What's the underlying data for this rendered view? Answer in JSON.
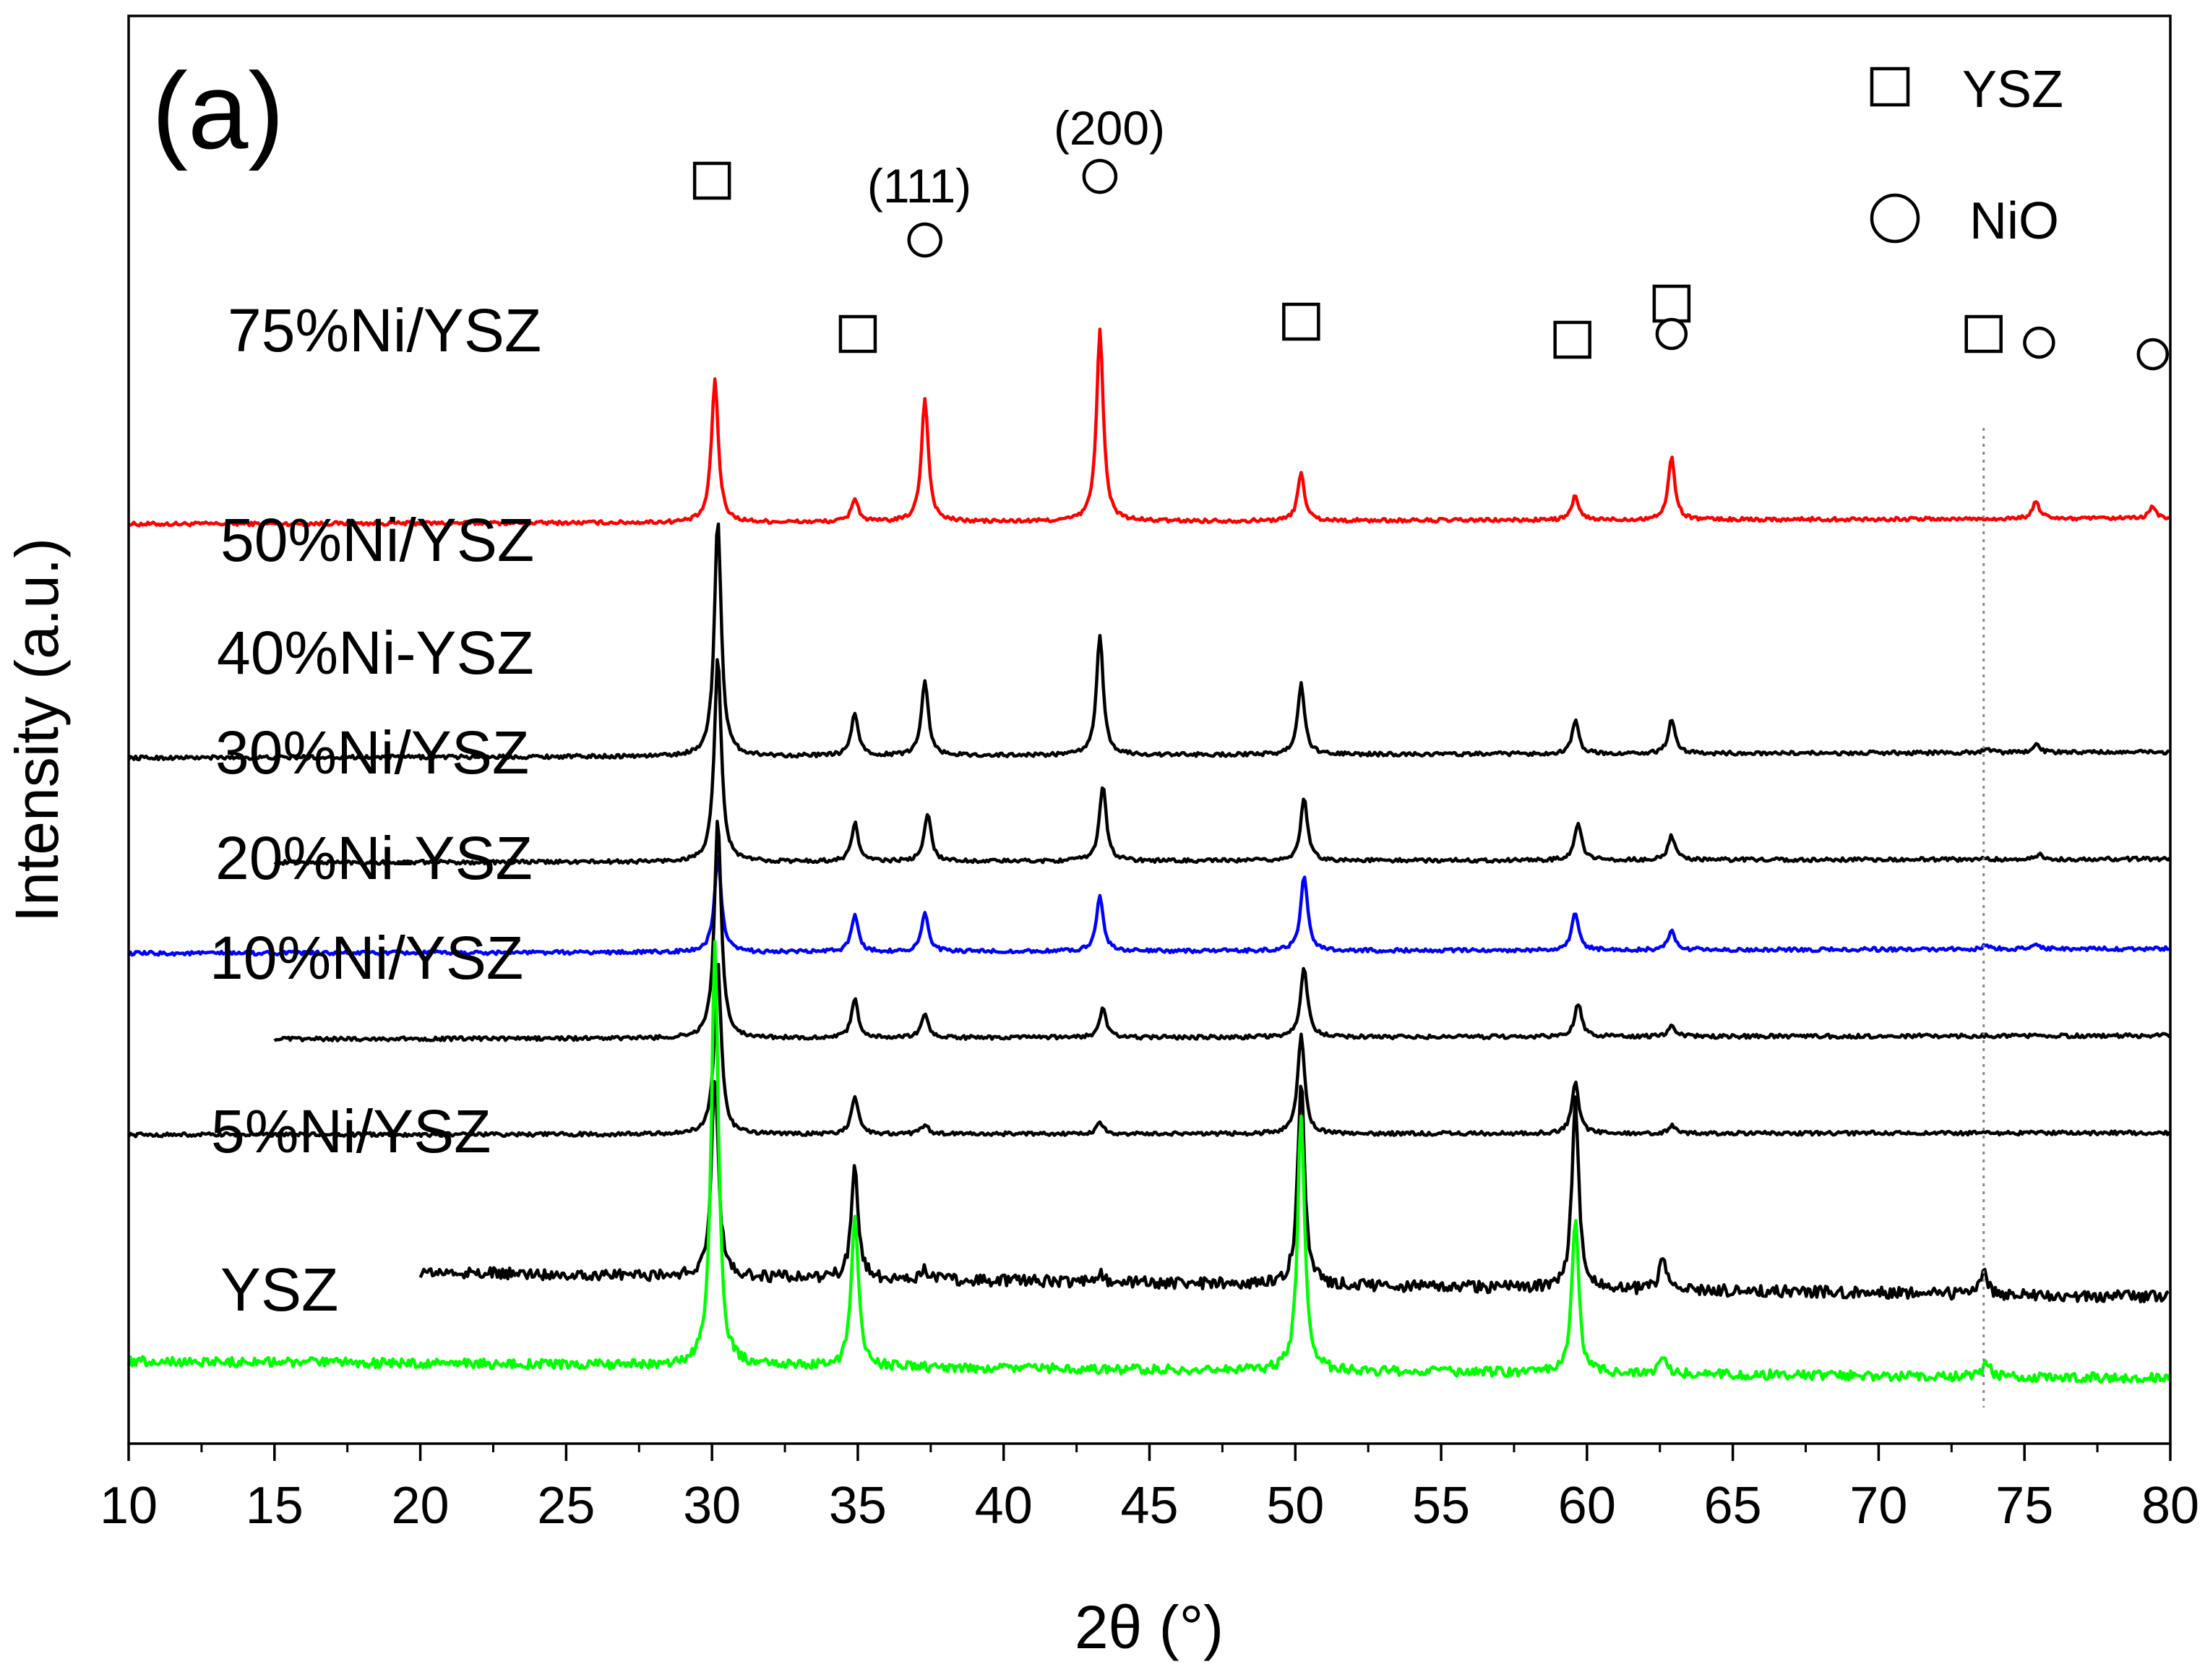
{
  "chart_data": {
    "type": "line",
    "panel_label": "(a)",
    "xlabel": "2θ (°)",
    "ylabel": "Intensity (a.u.)",
    "xlim": [
      10,
      80
    ],
    "xticks": [
      10,
      15,
      20,
      25,
      30,
      35,
      40,
      45,
      50,
      55,
      60,
      65,
      70,
      75,
      80
    ],
    "yaxis": "stacked offsets, arbitrary units, no numeric ticks",
    "legend": {
      "position": "top-right",
      "entries": [
        {
          "marker": "square",
          "label": "YSZ"
        },
        {
          "marker": "circle",
          "label": "NiO"
        }
      ]
    },
    "plane_labels": [
      {
        "text": "(111)",
        "x": 37.3
      },
      {
        "text": "(200)",
        "x": 43.3
      }
    ],
    "reference_line_x": 73.6,
    "peak_markers": [
      {
        "marker": "square",
        "x": 30.0
      },
      {
        "marker": "square",
        "x": 35.0
      },
      {
        "marker": "circle",
        "x": 37.3
      },
      {
        "marker": "circle",
        "x": 43.3
      },
      {
        "marker": "square",
        "x": 50.2
      },
      {
        "marker": "square",
        "x": 59.5
      },
      {
        "marker": "square",
        "x": 62.9
      },
      {
        "marker": "circle",
        "x": 62.9
      },
      {
        "marker": "square",
        "x": 73.6
      },
      {
        "marker": "circle",
        "x": 75.5
      },
      {
        "marker": "circle",
        "x": 79.4
      }
    ],
    "series": [
      {
        "name": "75%Ni/YSZ",
        "color": "#ff0000",
        "x_start": 10,
        "offset": 8.75,
        "tilt": 0.06,
        "noise": 0.02,
        "peaks": [
          [
            30.1,
            1.5
          ],
          [
            34.9,
            0.25
          ],
          [
            37.3,
            1.3
          ],
          [
            43.3,
            2.0
          ],
          [
            50.2,
            0.5
          ],
          [
            59.6,
            0.25
          ],
          [
            62.9,
            0.65
          ],
          [
            75.4,
            0.18
          ],
          [
            79.4,
            0.12
          ]
        ]
      },
      {
        "name": "50%Ni/YSZ",
        "color": "#000000",
        "x_start": 10,
        "offset": 6.3,
        "tilt": 0.06,
        "noise": 0.02,
        "peaks": [
          [
            30.2,
            2.5
          ],
          [
            34.9,
            0.45
          ],
          [
            37.3,
            0.8
          ],
          [
            43.3,
            1.25
          ],
          [
            50.2,
            0.75
          ],
          [
            59.6,
            0.35
          ],
          [
            62.9,
            0.35
          ],
          [
            73.7,
            0.05
          ],
          [
            75.4,
            0.08
          ]
        ]
      },
      {
        "name": "40%Ni-YSZ",
        "color": "#000000",
        "x_start": 15,
        "offset": 5.2,
        "tilt": 0.04,
        "noise": 0.02,
        "peaks": [
          [
            30.2,
            2.15
          ],
          [
            34.9,
            0.4
          ],
          [
            37.4,
            0.5
          ],
          [
            43.4,
            0.8
          ],
          [
            50.3,
            0.65
          ],
          [
            59.7,
            0.4
          ],
          [
            62.9,
            0.25
          ],
          [
            75.5,
            0.05
          ]
        ]
      },
      {
        "name": "30%Ni/YSZ",
        "color": "#0000ff",
        "x_start": 10,
        "offset": 4.25,
        "tilt": 0.05,
        "noise": 0.02,
        "peaks": [
          [
            30.2,
            1.0
          ],
          [
            34.9,
            0.4
          ],
          [
            37.3,
            0.4
          ],
          [
            43.3,
            0.6
          ],
          [
            50.3,
            0.8
          ],
          [
            59.6,
            0.4
          ],
          [
            62.9,
            0.2
          ],
          [
            73.7,
            0.04
          ],
          [
            75.4,
            0.05
          ]
        ]
      },
      {
        "name": "20%Ni-YSZ",
        "color": "#000000",
        "x_start": 15,
        "offset": 3.35,
        "tilt": 0.04,
        "noise": 0.02,
        "peaks": [
          [
            30.2,
            2.3
          ],
          [
            34.9,
            0.4
          ],
          [
            37.3,
            0.25
          ],
          [
            43.4,
            0.3
          ],
          [
            50.3,
            0.75
          ],
          [
            59.7,
            0.35
          ],
          [
            62.9,
            0.12
          ]
        ]
      },
      {
        "name": "10%Ni/YSZ",
        "color": "#000000",
        "x_start": 10,
        "offset": 2.35,
        "tilt": 0.02,
        "noise": 0.02,
        "peaks": [
          [
            30.2,
            1.8
          ],
          [
            34.9,
            0.4
          ],
          [
            37.3,
            0.1
          ],
          [
            43.3,
            0.12
          ],
          [
            50.2,
            1.05
          ],
          [
            59.6,
            0.55
          ],
          [
            62.9,
            0.08
          ]
        ]
      },
      {
        "name": "5%Ni/YSZ",
        "color": "#000000",
        "x_start": 20,
        "offset": 0.95,
        "tilt": -0.3,
        "noise": 0.06,
        "peaks": [
          [
            30.1,
            2.1
          ],
          [
            34.9,
            1.15
          ],
          [
            37.3,
            0.12
          ],
          [
            43.3,
            0.1
          ],
          [
            50.2,
            2.15
          ],
          [
            59.6,
            1.95
          ],
          [
            62.6,
            0.35
          ],
          [
            73.6,
            0.25
          ]
        ]
      },
      {
        "name": "YSZ",
        "color": "#00ff00",
        "x_start": 10,
        "offset": -0.02,
        "tilt": -0.18,
        "noise": 0.05,
        "peaks": [
          [
            30.1,
            4.4
          ],
          [
            34.9,
            1.6
          ],
          [
            50.2,
            2.7
          ],
          [
            59.6,
            1.6
          ],
          [
            62.6,
            0.2
          ],
          [
            73.7,
            0.15
          ]
        ]
      }
    ]
  }
}
